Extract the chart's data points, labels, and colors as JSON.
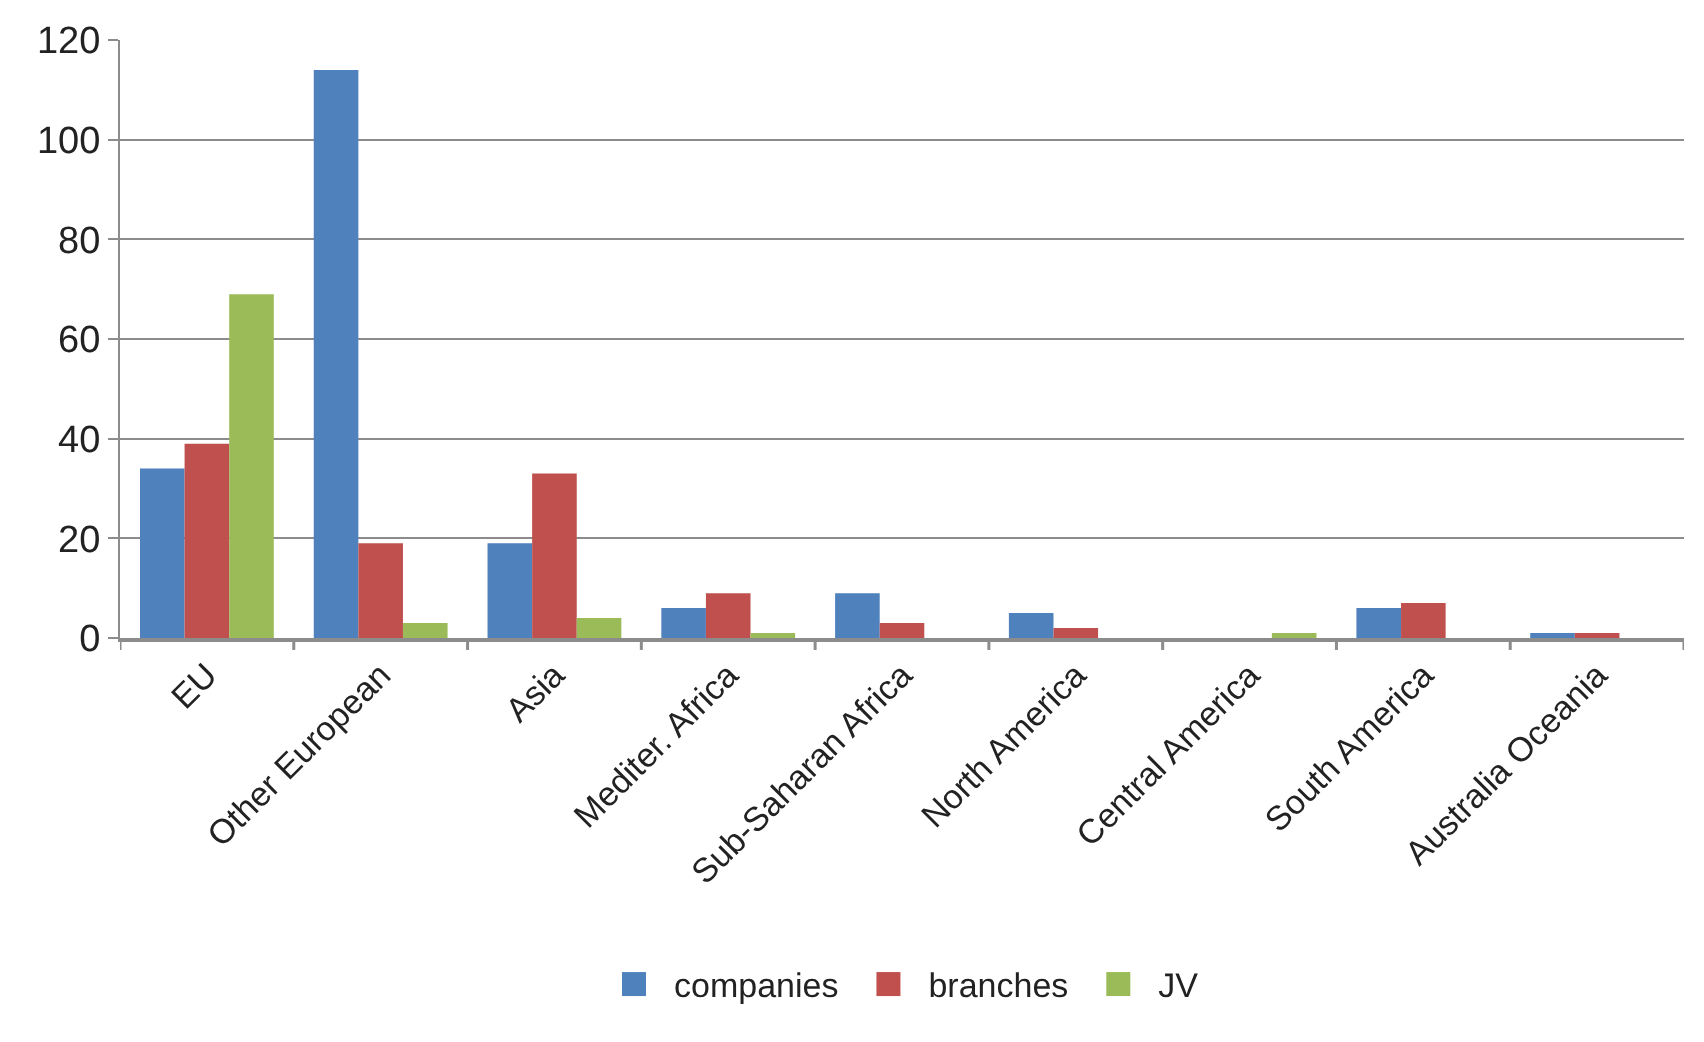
{
  "chart_data": {
    "type": "bar",
    "categories": [
      "EU",
      "Other European",
      "Asia",
      "Mediter. Africa",
      "Sub-Saharan Africa",
      "North America",
      "Central America",
      "South America",
      "Australia Oceania"
    ],
    "series": [
      {
        "name": "companies",
        "color": "#4f81bd",
        "values": [
          34,
          114,
          19,
          6,
          9,
          5,
          0,
          6,
          1
        ]
      },
      {
        "name": "branches",
        "color": "#c0504d",
        "values": [
          39,
          19,
          33,
          9,
          3,
          2,
          0,
          7,
          1
        ]
      },
      {
        "name": "JV",
        "color": "#9bbb59",
        "values": [
          69,
          3,
          4,
          1,
          0,
          0,
          1,
          0,
          0
        ]
      }
    ],
    "ylim": [
      0,
      120
    ],
    "yticks": [
      0,
      20,
      40,
      60,
      80,
      100,
      120
    ],
    "grid": "y",
    "legend": "bottom"
  }
}
